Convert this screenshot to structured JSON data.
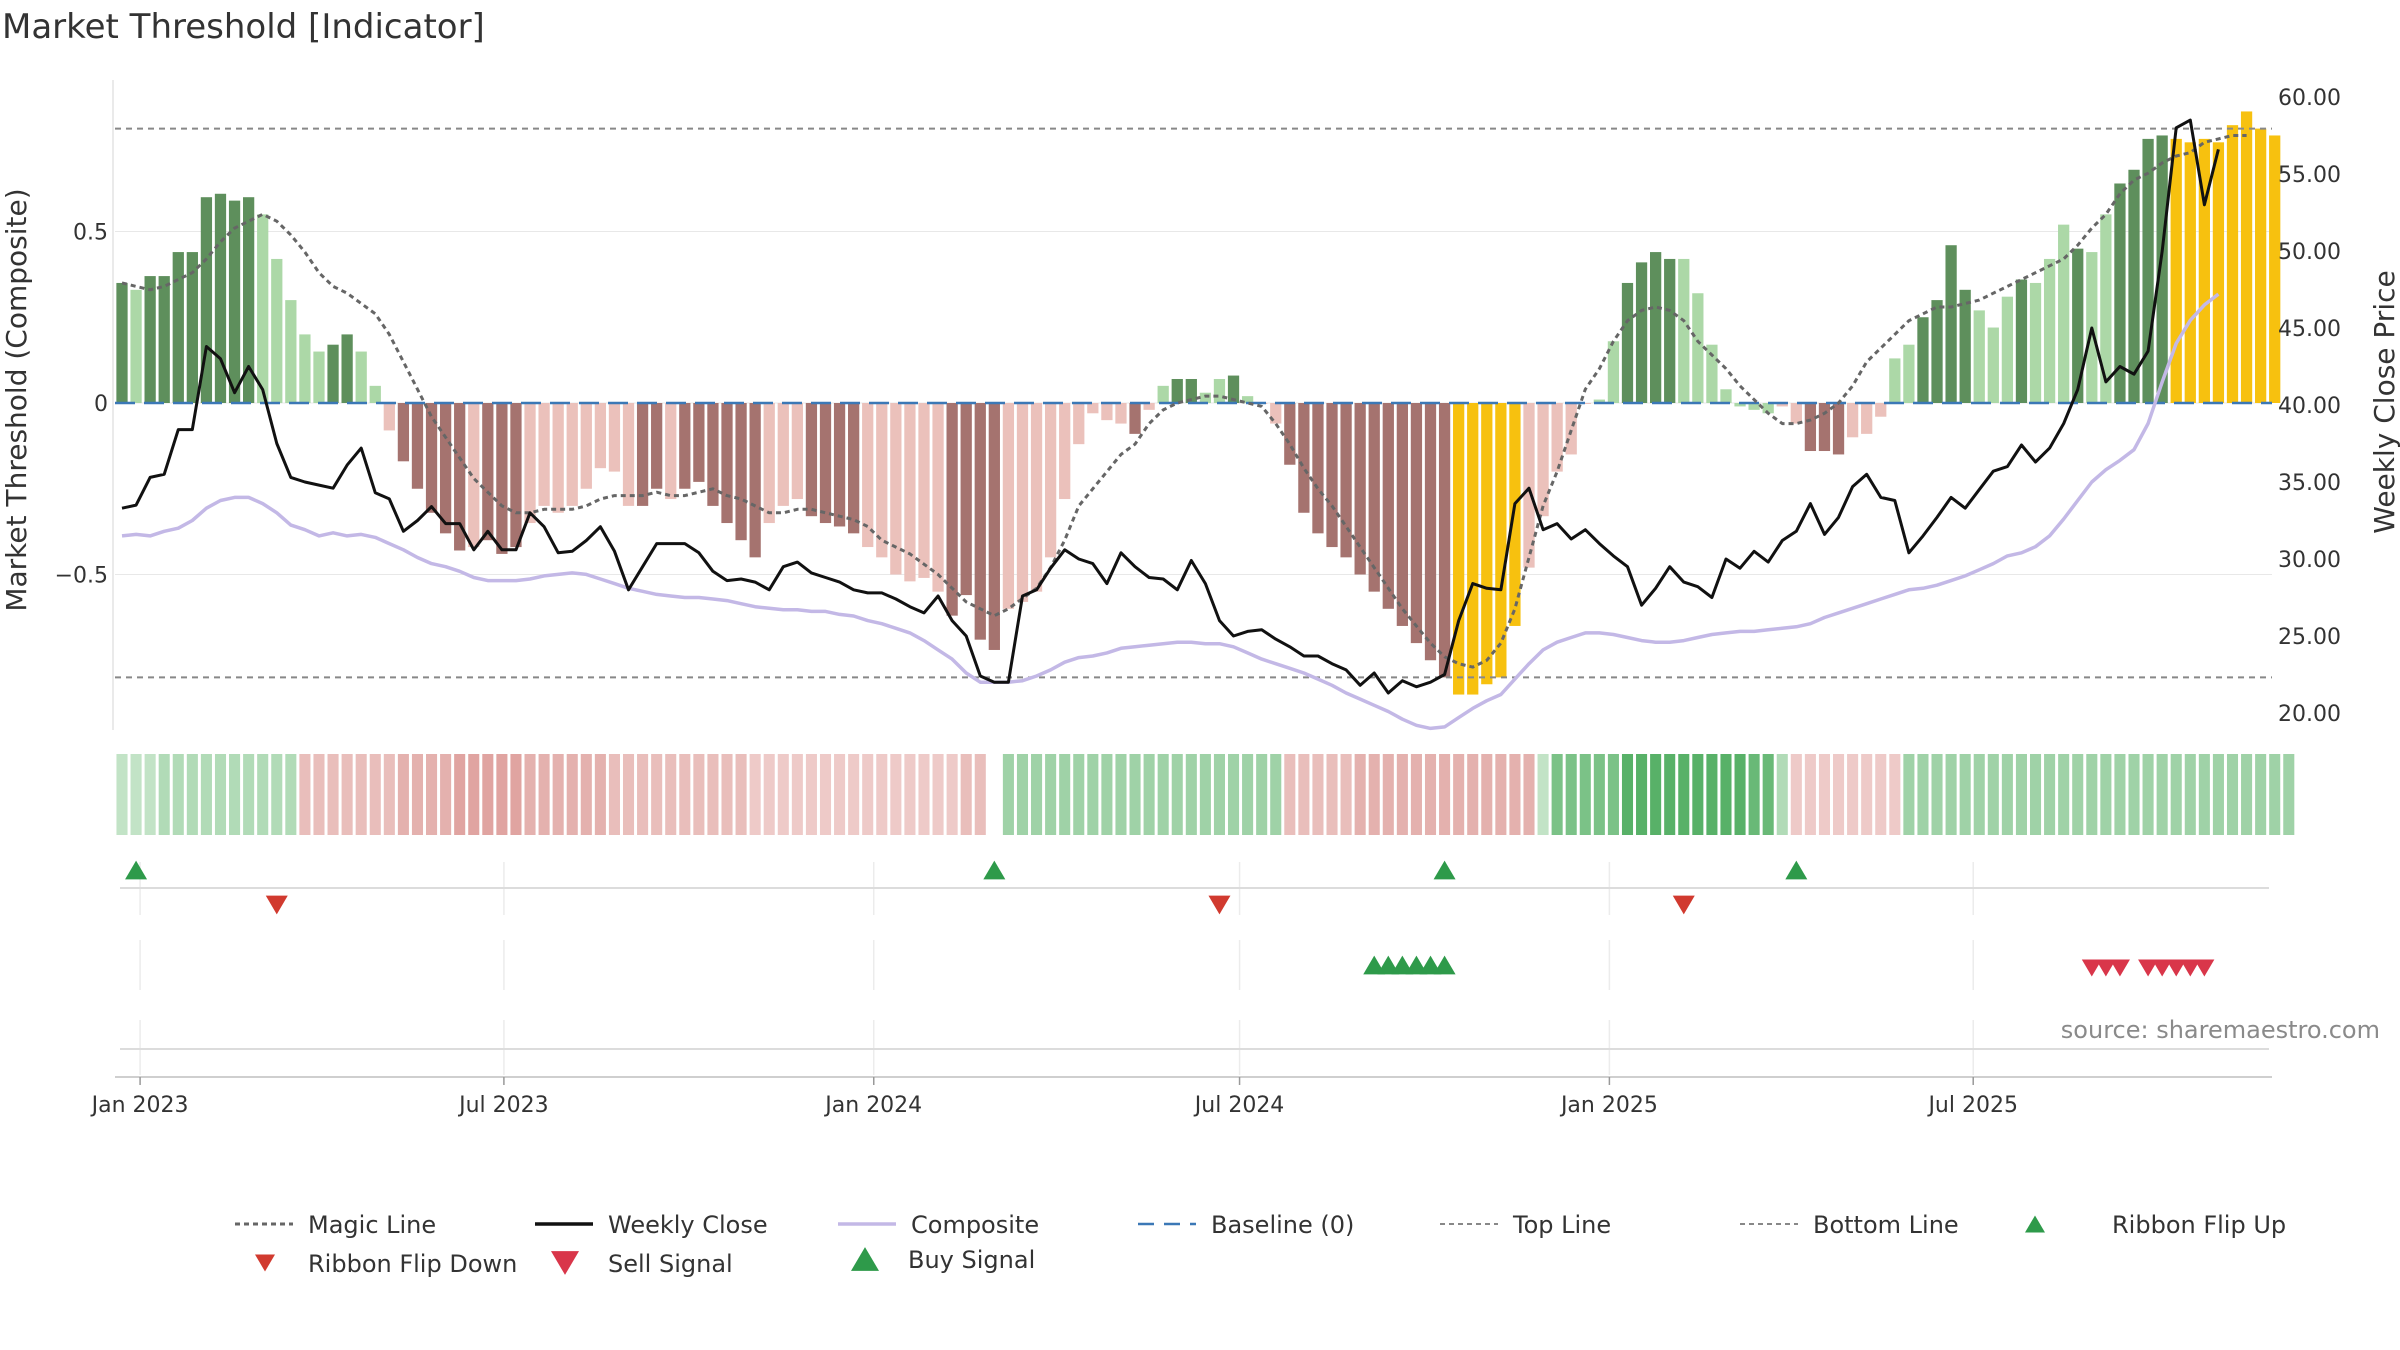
{
  "title": "Market Threshold [Indicator]",
  "source": "source: sharemaestro.com",
  "chart_data": {
    "type": "bar",
    "x_start": "2022-12-23",
    "x_step_days": 7,
    "x_ticks": [
      {
        "label": "Jan 2023",
        "date": "2023-01-01"
      },
      {
        "label": "Jul 2023",
        "date": "2023-07-01"
      },
      {
        "label": "Jan 2024",
        "date": "2024-01-01"
      },
      {
        "label": "Jul 2024",
        "date": "2024-07-01"
      },
      {
        "label": "Jan 2025",
        "date": "2025-01-01"
      },
      {
        "label": "Jul 2025",
        "date": "2025-07-01"
      }
    ],
    "ylabel_left": "Market Threshold (Composite)",
    "ylabel_right": "Weekly Close Price",
    "ylim_left": [
      -0.95,
      0.95
    ],
    "ylim_right": [
      20,
      60
    ],
    "yticks_left": [
      {
        "label": "0.5",
        "value": 0.5
      },
      {
        "label": "0",
        "value": 0
      },
      {
        "label": "−0.5",
        "value": -0.5
      }
    ],
    "yticks_right": [
      "20.00",
      "25.00",
      "30.00",
      "35.00",
      "40.00",
      "45.00",
      "50.00",
      "55.00",
      "60.00"
    ],
    "top_line": 0.8,
    "bottom_line": -0.8,
    "baseline": 0,
    "colors": {
      "pos_strong": "#5e8f5c",
      "pos_weak": "#acd8a7",
      "neg_strong": "#a5736f",
      "neg_weak": "#ebc1bb",
      "extreme": "#f7c10f",
      "weekly_close": "#111111",
      "magic_line": "#666666",
      "composite": "#c3b8e6",
      "baseline": "#3b78b6",
      "ref_lines": "#888888",
      "buy": "#2e9a4a",
      "sell": "#d9364a"
    },
    "bar_values": [
      0.35,
      0.33,
      0.37,
      0.37,
      0.44,
      0.44,
      0.6,
      0.61,
      0.59,
      0.6,
      0.55,
      0.42,
      0.3,
      0.2,
      0.15,
      0.17,
      0.2,
      0.15,
      0.05,
      -0.08,
      -0.17,
      -0.25,
      -0.32,
      -0.38,
      -0.43,
      -0.42,
      -0.4,
      -0.44,
      -0.42,
      -0.35,
      -0.3,
      -0.32,
      -0.3,
      -0.25,
      -0.19,
      -0.2,
      -0.3,
      -0.3,
      -0.25,
      -0.28,
      -0.25,
      -0.23,
      -0.3,
      -0.35,
      -0.4,
      -0.45,
      -0.35,
      -0.3,
      -0.28,
      -0.33,
      -0.35,
      -0.36,
      -0.38,
      -0.42,
      -0.45,
      -0.5,
      -0.52,
      -0.51,
      -0.55,
      -0.62,
      -0.56,
      -0.69,
      -0.72,
      -0.6,
      -0.58,
      -0.55,
      -0.45,
      -0.28,
      -0.12,
      -0.03,
      -0.05,
      -0.06,
      -0.09,
      -0.02,
      0.05,
      0.07,
      0.07,
      0.03,
      0.07,
      0.08,
      0.02,
      0.0,
      -0.06,
      -0.18,
      -0.32,
      -0.38,
      -0.42,
      -0.45,
      -0.5,
      -0.55,
      -0.6,
      -0.65,
      -0.7,
      -0.75,
      -0.8,
      -0.85,
      -0.85,
      -0.82,
      -0.8,
      -0.65,
      -0.48,
      -0.33,
      -0.2,
      -0.15,
      0.0,
      0.01,
      0.18,
      0.35,
      0.41,
      0.44,
      0.42,
      0.42,
      0.32,
      0.17,
      0.04,
      -0.01,
      -0.02,
      -0.03,
      -0.01,
      -0.06,
      -0.14,
      -0.14,
      -0.15,
      -0.1,
      -0.09,
      -0.04,
      0.13,
      0.17,
      0.25,
      0.3,
      0.46,
      0.33,
      0.27,
      0.22,
      0.31,
      0.36,
      0.35,
      0.42,
      0.52,
      0.45,
      0.44,
      0.55,
      0.64,
      0.68,
      0.77,
      0.78,
      0.77,
      0.76,
      0.77,
      0.76,
      0.81,
      0.85,
      0.8,
      0.78
    ],
    "bar_categories": [
      "ps",
      "pw",
      "ps",
      "ps",
      "ps",
      "ps",
      "ps",
      "ps",
      "ps",
      "ps",
      "pw",
      "pw",
      "pw",
      "pw",
      "pw",
      "ps",
      "ps",
      "pw",
      "pw",
      "nw",
      "ns",
      "ns",
      "ns",
      "ns",
      "ns",
      "nw",
      "ns",
      "ns",
      "ns",
      "nw",
      "nw",
      "nw",
      "nw",
      "nw",
      "nw",
      "nw",
      "nw",
      "ns",
      "ns",
      "nw",
      "ns",
      "ns",
      "ns",
      "ns",
      "ns",
      "ns",
      "nw",
      "nw",
      "nw",
      "ns",
      "ns",
      "ns",
      "ns",
      "nw",
      "nw",
      "nw",
      "nw",
      "nw",
      "nw",
      "ns",
      "ns",
      "ns",
      "ns",
      "nw",
      "nw",
      "nw",
      "nw",
      "nw",
      "nw",
      "nw",
      "nw",
      "nw",
      "ns",
      "nw",
      "pw",
      "ps",
      "ps",
      "pw",
      "pw",
      "ps",
      "pw",
      "nw",
      "nw",
      "ns",
      "ns",
      "ns",
      "ns",
      "ns",
      "ns",
      "ns",
      "ns",
      "ns",
      "ns",
      "ns",
      "ns",
      "ex",
      "ex",
      "ex",
      "ex",
      "ex",
      "nw",
      "nw",
      "nw",
      "nw",
      "nw",
      "pw",
      "pw",
      "ps",
      "ps",
      "ps",
      "ps",
      "pw",
      "pw",
      "pw",
      "pw",
      "pw",
      "pw",
      "pw",
      "nw",
      "nw",
      "ns",
      "ns",
      "ns",
      "nw",
      "nw",
      "nw",
      "pw",
      "pw",
      "ps",
      "ps",
      "ps",
      "ps",
      "pw",
      "pw",
      "pw",
      "ps",
      "pw",
      "pw",
      "pw",
      "ps",
      "pw",
      "pw",
      "ps",
      "ps",
      "ps",
      "ps",
      "ex",
      "ex",
      "ex",
      "ex",
      "ex",
      "ex",
      "ex",
      "ex",
      "ex",
      "ex"
    ],
    "weekly_close": [
      33.3,
      33.5,
      35.3,
      35.5,
      38.4,
      38.4,
      43.8,
      43.0,
      40.8,
      42.5,
      41.0,
      37.5,
      35.3,
      35.0,
      34.8,
      34.6,
      36.1,
      37.2,
      34.3,
      33.9,
      31.8,
      32.5,
      33.4,
      32.3,
      32.3,
      30.6,
      31.8,
      30.6,
      30.6,
      33.0,
      32.1,
      30.4,
      30.5,
      31.2,
      32.1,
      30.5,
      28.0,
      29.5,
      31.0,
      31.0,
      31.0,
      30.4,
      29.2,
      28.6,
      28.7,
      28.5,
      28.0,
      29.5,
      29.8,
      29.1,
      28.8,
      28.5,
      28.0,
      27.8,
      27.8,
      27.4,
      26.9,
      26.5,
      27.6,
      26.0,
      25.0,
      22.4,
      22.0,
      22.0,
      27.6,
      28.0,
      29.4,
      30.6,
      30.0,
      29.7,
      28.4,
      30.4,
      29.5,
      28.8,
      28.7,
      28.0,
      29.9,
      28.4,
      26.0,
      25.0,
      25.3,
      25.4,
      24.8,
      24.3,
      23.7,
      23.7,
      23.2,
      22.8,
      21.8,
      22.6,
      21.3,
      22.1,
      21.7,
      22.0,
      22.5,
      26.0,
      28.4,
      28.1,
      28.0,
      33.6,
      34.6,
      31.9,
      32.3,
      31.3,
      31.9,
      31.0,
      30.2,
      29.5,
      27.0,
      28.1,
      29.5,
      28.5,
      28.2,
      27.5,
      30.0,
      29.4,
      30.5,
      29.8,
      31.2,
      31.8,
      33.6,
      31.6,
      32.7,
      34.7,
      35.5,
      34.0,
      33.8,
      30.4,
      31.5,
      32.7,
      34.0,
      33.3,
      34.5,
      35.7,
      36.0,
      37.4,
      36.3,
      37.2,
      38.8,
      41.0,
      45.0,
      41.5,
      42.5,
      42.0,
      43.5,
      50.0,
      58.0,
      58.5,
      53.0,
      56.6
    ],
    "magic_line": [
      0.35,
      0.34,
      0.33,
      0.34,
      0.36,
      0.38,
      0.42,
      0.47,
      0.51,
      0.53,
      0.55,
      0.53,
      0.49,
      0.44,
      0.38,
      0.34,
      0.32,
      0.29,
      0.26,
      0.2,
      0.12,
      0.04,
      -0.04,
      -0.1,
      -0.16,
      -0.22,
      -0.26,
      -0.3,
      -0.32,
      -0.32,
      -0.31,
      -0.31,
      -0.31,
      -0.3,
      -0.28,
      -0.27,
      -0.27,
      -0.27,
      -0.26,
      -0.27,
      -0.27,
      -0.26,
      -0.25,
      -0.27,
      -0.28,
      -0.3,
      -0.32,
      -0.32,
      -0.31,
      -0.31,
      -0.32,
      -0.33,
      -0.34,
      -0.36,
      -0.4,
      -0.42,
      -0.44,
      -0.47,
      -0.5,
      -0.54,
      -0.58,
      -0.6,
      -0.62,
      -0.6,
      -0.57,
      -0.54,
      -0.48,
      -0.4,
      -0.3,
      -0.25,
      -0.2,
      -0.15,
      -0.12,
      -0.06,
      -0.02,
      0.0,
      0.01,
      0.02,
      0.02,
      0.01,
      0.0,
      -0.01,
      -0.06,
      -0.12,
      -0.19,
      -0.25,
      -0.3,
      -0.36,
      -0.42,
      -0.48,
      -0.54,
      -0.6,
      -0.65,
      -0.7,
      -0.74,
      -0.76,
      -0.77,
      -0.75,
      -0.7,
      -0.6,
      -0.45,
      -0.3,
      -0.2,
      -0.08,
      0.04,
      0.1,
      0.18,
      0.24,
      0.27,
      0.28,
      0.27,
      0.24,
      0.18,
      0.14,
      0.1,
      0.05,
      0.01,
      -0.03,
      -0.06,
      -0.06,
      -0.05,
      -0.03,
      0.0,
      0.05,
      0.12,
      0.16,
      0.2,
      0.24,
      0.26,
      0.28,
      0.28,
      0.29,
      0.3,
      0.32,
      0.34,
      0.36,
      0.38,
      0.4,
      0.42,
      0.46,
      0.51,
      0.55,
      0.61,
      0.65,
      0.67,
      0.7,
      0.72,
      0.73,
      0.76,
      0.77,
      0.78,
      0.78
    ],
    "composite": [
      31.5,
      31.6,
      31.5,
      31.8,
      32.0,
      32.5,
      33.3,
      33.8,
      34.0,
      34.0,
      33.6,
      33.0,
      32.2,
      31.9,
      31.5,
      31.7,
      31.5,
      31.6,
      31.4,
      31.0,
      30.6,
      30.1,
      29.7,
      29.5,
      29.2,
      28.8,
      28.6,
      28.6,
      28.6,
      28.7,
      28.9,
      29.0,
      29.1,
      29.0,
      28.7,
      28.4,
      28.1,
      27.9,
      27.7,
      27.6,
      27.5,
      27.5,
      27.4,
      27.3,
      27.1,
      26.9,
      26.8,
      26.7,
      26.7,
      26.6,
      26.6,
      26.4,
      26.3,
      26.0,
      25.8,
      25.5,
      25.2,
      24.7,
      24.1,
      23.5,
      22.6,
      22.0,
      22.0,
      22.0,
      22.1,
      22.4,
      22.8,
      23.3,
      23.6,
      23.7,
      23.9,
      24.2,
      24.3,
      24.4,
      24.5,
      24.6,
      24.6,
      24.5,
      24.5,
      24.3,
      23.9,
      23.5,
      23.2,
      22.9,
      22.6,
      22.2,
      21.8,
      21.3,
      20.9,
      20.5,
      20.1,
      19.6,
      19.2,
      19.0,
      19.1,
      19.7,
      20.3,
      20.8,
      21.2,
      22.2,
      23.2,
      24.1,
      24.6,
      24.9,
      25.2,
      25.2,
      25.1,
      24.9,
      24.7,
      24.6,
      24.6,
      24.7,
      24.9,
      25.1,
      25.2,
      25.3,
      25.3,
      25.4,
      25.5,
      25.6,
      25.8,
      26.2,
      26.5,
      26.8,
      27.1,
      27.4,
      27.7,
      28.0,
      28.1,
      28.3,
      28.6,
      28.9,
      29.3,
      29.7,
      30.2,
      30.4,
      30.8,
      31.5,
      32.6,
      33.8,
      35.0,
      35.8,
      36.4,
      37.1,
      38.8,
      41.5,
      44.0,
      45.5,
      46.5,
      47.2
    ],
    "ribbon": [
      0.2,
      0.2,
      0.2,
      0.3,
      0.3,
      0.3,
      0.3,
      0.3,
      0.3,
      0.3,
      0.3,
      0.3,
      0.3,
      -0.3,
      -0.3,
      -0.3,
      -0.3,
      -0.3,
      -0.3,
      -0.3,
      -0.4,
      -0.4,
      -0.4,
      -0.4,
      -0.5,
      -0.5,
      -0.5,
      -0.5,
      -0.5,
      -0.4,
      -0.4,
      -0.4,
      -0.4,
      -0.4,
      -0.4,
      -0.3,
      -0.3,
      -0.3,
      -0.3,
      -0.3,
      -0.3,
      -0.3,
      -0.3,
      -0.3,
      -0.3,
      -0.2,
      -0.2,
      -0.2,
      -0.2,
      -0.2,
      -0.2,
      -0.2,
      -0.2,
      -0.2,
      -0.2,
      -0.2,
      -0.2,
      -0.2,
      -0.2,
      -0.2,
      -0.3,
      -0.3,
      null,
      0.4,
      0.4,
      0.4,
      0.4,
      0.4,
      0.4,
      0.4,
      0.4,
      0.4,
      0.4,
      0.4,
      0.4,
      0.4,
      0.4,
      0.4,
      0.4,
      0.4,
      0.4,
      0.4,
      0.4,
      -0.3,
      -0.3,
      -0.3,
      -0.3,
      -0.3,
      -0.4,
      -0.4,
      -0.4,
      -0.4,
      -0.4,
      -0.4,
      -0.4,
      -0.4,
      -0.4,
      -0.4,
      -0.4,
      -0.4,
      -0.4,
      0.2,
      0.6,
      0.6,
      0.6,
      0.6,
      0.6,
      0.8,
      0.8,
      0.8,
      0.8,
      0.8,
      0.8,
      0.8,
      0.8,
      0.8,
      0.7,
      0.7,
      0.3,
      -0.2,
      -0.2,
      -0.2,
      -0.2,
      -0.2,
      -0.2,
      -0.2,
      -0.2,
      0.4,
      0.4,
      0.4,
      0.4,
      0.4,
      0.4,
      0.4,
      0.4,
      0.4,
      0.4,
      0.4,
      0.4,
      0.4,
      0.4,
      0.4,
      0.4,
      0.4,
      0.4,
      0.4,
      0.4,
      0.4,
      0.4,
      0.4,
      0.4,
      0.4,
      0.4,
      0.4,
      0.4
    ],
    "ribbon_flip_up": [
      1,
      62,
      94,
      119
    ],
    "ribbon_flip_down": [
      11,
      78,
      111
    ],
    "buy_signal": [
      89,
      90,
      91,
      92,
      93,
      94
    ],
    "sell_signal": [
      140,
      141,
      142,
      144,
      145,
      146,
      147,
      148
    ],
    "legend": [
      "Magic Line",
      "Weekly Close",
      "Composite",
      "Baseline (0)",
      "Top Line",
      "Bottom Line",
      "Ribbon Flip Up",
      "Ribbon Flip Down",
      "Sell Signal",
      "Buy Signal"
    ]
  }
}
